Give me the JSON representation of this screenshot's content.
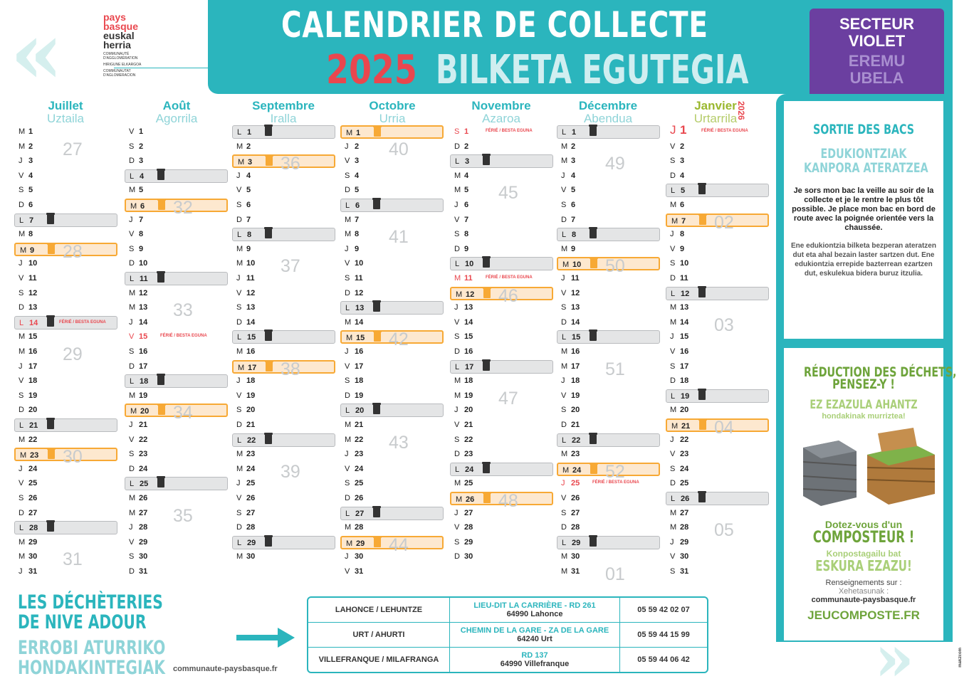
{
  "header": {
    "title_line1": "CALENDRIER DE COLLECTE",
    "year": "2025",
    "title_line2": "BILKETA EGUTEGIA",
    "sector_fr_1": "SECTEUR",
    "sector_fr_2": "VIOLET",
    "sector_eu_1": "EREMU",
    "sector_eu_2": "UBELA"
  },
  "logo": {
    "line1": "pays",
    "line2": "basque",
    "line3": "euskal",
    "line4": "herria",
    "small1": "COMMUNAUTÉ D'AGGLOMÉRATION",
    "small2": "HIRIGUNE ELKARGOA",
    "small3": "COMMUNAUTAT D'AGLOMERACION"
  },
  "colors": {
    "teal": "#2bb5bd",
    "red": "#e9474e",
    "purple": "#6b3fa0",
    "orange": "#f7a935",
    "grey": "#e4e5e6",
    "green": "#6ea43b"
  },
  "next_year": "2026",
  "ferie_label": "FÉRIÉ / BESTA EGUNA",
  "months": [
    {
      "fr": "Juillet",
      "eu": "Uztaila",
      "days": [
        [
          "M",
          "1"
        ],
        [
          "M",
          "2"
        ],
        [
          "J",
          "3"
        ],
        [
          "V",
          "4"
        ],
        [
          "S",
          "5"
        ],
        [
          "D",
          "6"
        ],
        [
          "L",
          "7"
        ],
        [
          "M",
          "8"
        ],
        [
          "M",
          "9"
        ],
        [
          "J",
          "10"
        ],
        [
          "V",
          "11"
        ],
        [
          "S",
          "12"
        ],
        [
          "D",
          "13"
        ],
        [
          "L",
          "14"
        ],
        [
          "M",
          "15"
        ],
        [
          "M",
          "16"
        ],
        [
          "J",
          "17"
        ],
        [
          "V",
          "18"
        ],
        [
          "S",
          "19"
        ],
        [
          "D",
          "20"
        ],
        [
          "L",
          "21"
        ],
        [
          "M",
          "22"
        ],
        [
          "M",
          "23"
        ],
        [
          "J",
          "24"
        ],
        [
          "V",
          "25"
        ],
        [
          "S",
          "26"
        ],
        [
          "D",
          "27"
        ],
        [
          "L",
          "28"
        ],
        [
          "M",
          "29"
        ],
        [
          "M",
          "30"
        ],
        [
          "J",
          "31"
        ]
      ],
      "grey": [
        "7",
        "14",
        "21",
        "28"
      ],
      "orange": [
        "9",
        "23"
      ],
      "ferie": [
        "14"
      ],
      "weeks": [
        [
          "27",
          1
        ],
        [
          "28",
          8
        ],
        [
          "29",
          15
        ],
        [
          "30",
          22
        ],
        [
          "31",
          29
        ]
      ]
    },
    {
      "fr": "Août",
      "eu": "Agorrila",
      "days": [
        [
          "V",
          "1"
        ],
        [
          "S",
          "2"
        ],
        [
          "D",
          "3"
        ],
        [
          "L",
          "4"
        ],
        [
          "M",
          "5"
        ],
        [
          "M",
          "6"
        ],
        [
          "J",
          "7"
        ],
        [
          "V",
          "8"
        ],
        [
          "S",
          "9"
        ],
        [
          "D",
          "10"
        ],
        [
          "L",
          "11"
        ],
        [
          "M",
          "12"
        ],
        [
          "M",
          "13"
        ],
        [
          "J",
          "14"
        ],
        [
          "V",
          "15"
        ],
        [
          "S",
          "16"
        ],
        [
          "D",
          "17"
        ],
        [
          "L",
          "18"
        ],
        [
          "M",
          "19"
        ],
        [
          "M",
          "20"
        ],
        [
          "J",
          "21"
        ],
        [
          "V",
          "22"
        ],
        [
          "S",
          "23"
        ],
        [
          "D",
          "24"
        ],
        [
          "L",
          "25"
        ],
        [
          "M",
          "26"
        ],
        [
          "M",
          "27"
        ],
        [
          "J",
          "28"
        ],
        [
          "V",
          "29"
        ],
        [
          "S",
          "30"
        ],
        [
          "D",
          "31"
        ]
      ],
      "grey": [
        "4",
        "11",
        "18",
        "25"
      ],
      "orange": [
        "6",
        "20"
      ],
      "ferie": [
        "15"
      ],
      "weeks": [
        [
          "32",
          5
        ],
        [
          "33",
          12
        ],
        [
          "34",
          19
        ],
        [
          "35",
          26
        ]
      ]
    },
    {
      "fr": "Septembre",
      "eu": "Iralla",
      "days": [
        [
          "L",
          "1"
        ],
        [
          "M",
          "2"
        ],
        [
          "M",
          "3"
        ],
        [
          "J",
          "4"
        ],
        [
          "V",
          "5"
        ],
        [
          "S",
          "6"
        ],
        [
          "D",
          "7"
        ],
        [
          "L",
          "8"
        ],
        [
          "M",
          "9"
        ],
        [
          "M",
          "10"
        ],
        [
          "J",
          "11"
        ],
        [
          "V",
          "12"
        ],
        [
          "S",
          "13"
        ],
        [
          "D",
          "14"
        ],
        [
          "L",
          "15"
        ],
        [
          "M",
          "16"
        ],
        [
          "M",
          "17"
        ],
        [
          "J",
          "18"
        ],
        [
          "V",
          "19"
        ],
        [
          "S",
          "20"
        ],
        [
          "D",
          "21"
        ],
        [
          "L",
          "22"
        ],
        [
          "M",
          "23"
        ],
        [
          "M",
          "24"
        ],
        [
          "J",
          "25"
        ],
        [
          "V",
          "26"
        ],
        [
          "S",
          "27"
        ],
        [
          "D",
          "28"
        ],
        [
          "L",
          "29"
        ],
        [
          "M",
          "30"
        ]
      ],
      "grey": [
        "1",
        "8",
        "15",
        "22",
        "29"
      ],
      "orange": [
        "3",
        "17"
      ],
      "ferie": [],
      "weeks": [
        [
          "36",
          2
        ],
        [
          "37",
          9
        ],
        [
          "38",
          16
        ],
        [
          "39",
          23
        ]
      ]
    },
    {
      "fr": "Octobre",
      "eu": "Urria",
      "days": [
        [
          "M",
          "1"
        ],
        [
          "J",
          "2"
        ],
        [
          "V",
          "3"
        ],
        [
          "S",
          "4"
        ],
        [
          "D",
          "5"
        ],
        [
          "L",
          "6"
        ],
        [
          "M",
          "7"
        ],
        [
          "M",
          "8"
        ],
        [
          "J",
          "9"
        ],
        [
          "V",
          "10"
        ],
        [
          "S",
          "11"
        ],
        [
          "D",
          "12"
        ],
        [
          "L",
          "13"
        ],
        [
          "M",
          "14"
        ],
        [
          "M",
          "15"
        ],
        [
          "J",
          "16"
        ],
        [
          "V",
          "17"
        ],
        [
          "S",
          "18"
        ],
        [
          "D",
          "19"
        ],
        [
          "L",
          "20"
        ],
        [
          "M",
          "21"
        ],
        [
          "M",
          "22"
        ],
        [
          "J",
          "23"
        ],
        [
          "V",
          "24"
        ],
        [
          "S",
          "25"
        ],
        [
          "D",
          "26"
        ],
        [
          "L",
          "27"
        ],
        [
          "M",
          "28"
        ],
        [
          "M",
          "29"
        ],
        [
          "J",
          "30"
        ],
        [
          "V",
          "31"
        ]
      ],
      "grey": [
        "6",
        "13",
        "20",
        "27"
      ],
      "orange": [
        "1",
        "15",
        "29"
      ],
      "ferie": [],
      "weeks": [
        [
          "40",
          1
        ],
        [
          "41",
          7
        ],
        [
          "42",
          14
        ],
        [
          "43",
          21
        ],
        [
          "44",
          28
        ]
      ]
    },
    {
      "fr": "Novembre",
      "eu": "Azaroa",
      "days": [
        [
          "S",
          "1"
        ],
        [
          "D",
          "2"
        ],
        [
          "L",
          "3"
        ],
        [
          "M",
          "4"
        ],
        [
          "M",
          "5"
        ],
        [
          "J",
          "6"
        ],
        [
          "V",
          "7"
        ],
        [
          "S",
          "8"
        ],
        [
          "D",
          "9"
        ],
        [
          "L",
          "10"
        ],
        [
          "M",
          "11"
        ],
        [
          "M",
          "12"
        ],
        [
          "J",
          "13"
        ],
        [
          "V",
          "14"
        ],
        [
          "S",
          "15"
        ],
        [
          "D",
          "16"
        ],
        [
          "L",
          "17"
        ],
        [
          "M",
          "18"
        ],
        [
          "M",
          "19"
        ],
        [
          "J",
          "20"
        ],
        [
          "V",
          "21"
        ],
        [
          "S",
          "22"
        ],
        [
          "D",
          "23"
        ],
        [
          "L",
          "24"
        ],
        [
          "M",
          "25"
        ],
        [
          "M",
          "26"
        ],
        [
          "J",
          "27"
        ],
        [
          "V",
          "28"
        ],
        [
          "S",
          "29"
        ],
        [
          "D",
          "30"
        ]
      ],
      "grey": [
        "3",
        "10",
        "17",
        "24"
      ],
      "orange": [
        "12",
        "26"
      ],
      "ferie": [
        "1",
        "11"
      ],
      "weeks": [
        [
          "45",
          4
        ],
        [
          "46",
          11
        ],
        [
          "47",
          18
        ],
        [
          "48",
          25
        ]
      ]
    },
    {
      "fr": "Décembre",
      "eu": "Abendua",
      "days": [
        [
          "L",
          "1"
        ],
        [
          "M",
          "2"
        ],
        [
          "M",
          "3"
        ],
        [
          "J",
          "4"
        ],
        [
          "V",
          "5"
        ],
        [
          "S",
          "6"
        ],
        [
          "D",
          "7"
        ],
        [
          "L",
          "8"
        ],
        [
          "M",
          "9"
        ],
        [
          "M",
          "10"
        ],
        [
          "J",
          "11"
        ],
        [
          "V",
          "12"
        ],
        [
          "S",
          "13"
        ],
        [
          "D",
          "14"
        ],
        [
          "L",
          "15"
        ],
        [
          "M",
          "16"
        ],
        [
          "M",
          "17"
        ],
        [
          "J",
          "18"
        ],
        [
          "V",
          "19"
        ],
        [
          "S",
          "20"
        ],
        [
          "D",
          "21"
        ],
        [
          "L",
          "22"
        ],
        [
          "M",
          "23"
        ],
        [
          "M",
          "24"
        ],
        [
          "J",
          "25"
        ],
        [
          "V",
          "26"
        ],
        [
          "S",
          "27"
        ],
        [
          "D",
          "28"
        ],
        [
          "L",
          "29"
        ],
        [
          "M",
          "30"
        ],
        [
          "M",
          "31"
        ]
      ],
      "grey": [
        "1",
        "8",
        "15",
        "22",
        "29"
      ],
      "orange": [
        "10",
        "24"
      ],
      "ferie": [
        "25"
      ],
      "weeks": [
        [
          "49",
          2
        ],
        [
          "50",
          9
        ],
        [
          "51",
          16
        ],
        [
          "52",
          23
        ],
        [
          "01",
          30
        ]
      ]
    },
    {
      "fr": "Janvier",
      "eu": "Urtarrila",
      "days": [
        [
          "J",
          "1"
        ],
        [
          "V",
          "2"
        ],
        [
          "S",
          "3"
        ],
        [
          "D",
          "4"
        ],
        [
          "L",
          "5"
        ],
        [
          "M",
          "6"
        ],
        [
          "M",
          "7"
        ],
        [
          "J",
          "8"
        ],
        [
          "V",
          "9"
        ],
        [
          "S",
          "10"
        ],
        [
          "D",
          "11"
        ],
        [
          "L",
          "12"
        ],
        [
          "M",
          "13"
        ],
        [
          "M",
          "14"
        ],
        [
          "J",
          "15"
        ],
        [
          "V",
          "16"
        ],
        [
          "S",
          "17"
        ],
        [
          "D",
          "18"
        ],
        [
          "L",
          "19"
        ],
        [
          "M",
          "20"
        ],
        [
          "M",
          "21"
        ],
        [
          "J",
          "22"
        ],
        [
          "V",
          "23"
        ],
        [
          "S",
          "24"
        ],
        [
          "D",
          "25"
        ],
        [
          "L",
          "26"
        ],
        [
          "M",
          "27"
        ],
        [
          "M",
          "28"
        ],
        [
          "J",
          "29"
        ],
        [
          "V",
          "30"
        ],
        [
          "S",
          "31"
        ]
      ],
      "grey": [
        "5",
        "12",
        "19",
        "26"
      ],
      "orange": [
        "7",
        "21"
      ],
      "ferie": [
        "1"
      ],
      "weeks": [
        [
          "02",
          6
        ],
        [
          "03",
          13
        ],
        [
          "04",
          20
        ],
        [
          "05",
          27
        ]
      ]
    }
  ],
  "sortie": {
    "title": "SORTIE DES BACS",
    "title_eu_1": "EDUKIONTZIAK",
    "title_eu_2": "KANPORA ATERATZEA",
    "text_fr": "Je sors mon bac la veille au soir de la collecte et je le rentre le plus tôt possible. Je place mon bac en bord de route avec la poignée orientée vers la chaussée.",
    "text_eu": "Ene edukiontzia bilketa bezperan ateratzen dut eta ahal bezain laster sartzen dut. Ene edukiontzia errepide bazterrean ezartzen dut, eskulekua bidera buruz itzulia."
  },
  "reduction": {
    "title_1": "RÉDUCTION DES DÉCHETS,",
    "title_2": "PENSEZ-Y !",
    "eu_1": "EZ EZAZULA AHANTZ",
    "eu_2": "hondakinak murriztea!",
    "dotez": "Dotez-vous d'un",
    "composteur": "COMPOSTEUR !",
    "eu_3": "Konpostagailu bat",
    "eu_4": "ESKURA EZAZU!",
    "info_fr": "Renseignements sur :",
    "info_eu": "Xehetasunak :",
    "info_url": "communaute-paysbasque.fr",
    "site": "JEUCOMPOSTE.FR"
  },
  "decheteries": {
    "title_fr_1": "LES DÉCHÈTERIES",
    "title_fr_2": "DE NIVE ADOUR",
    "title_eu_1": "ERROBI ATURRIKO",
    "title_eu_2": "HONDAKINTEGIAK",
    "url": "communaute-paysbasque.fr",
    "rows": [
      {
        "name": "LAHONCE / LEHUNTZE",
        "addr1": "LIEU-DIT LA CARRIÈRE - RD 261",
        "addr2": "64990 Lahonce",
        "phone": "05 59 42 02 07"
      },
      {
        "name": "URT / AHURTI",
        "addr1": "CHEMIN DE LA GARE - ZA DE LA GARE",
        "addr2": "64240 Urt",
        "phone": "05 59 44 15 99"
      },
      {
        "name": "VILLEFRANQUE / MILAFRANGA",
        "addr1": "RD 137",
        "addr2": "64990 Villefranque",
        "phone": "05 59 44 06 42"
      }
    ]
  },
  "credit": "mak2com"
}
